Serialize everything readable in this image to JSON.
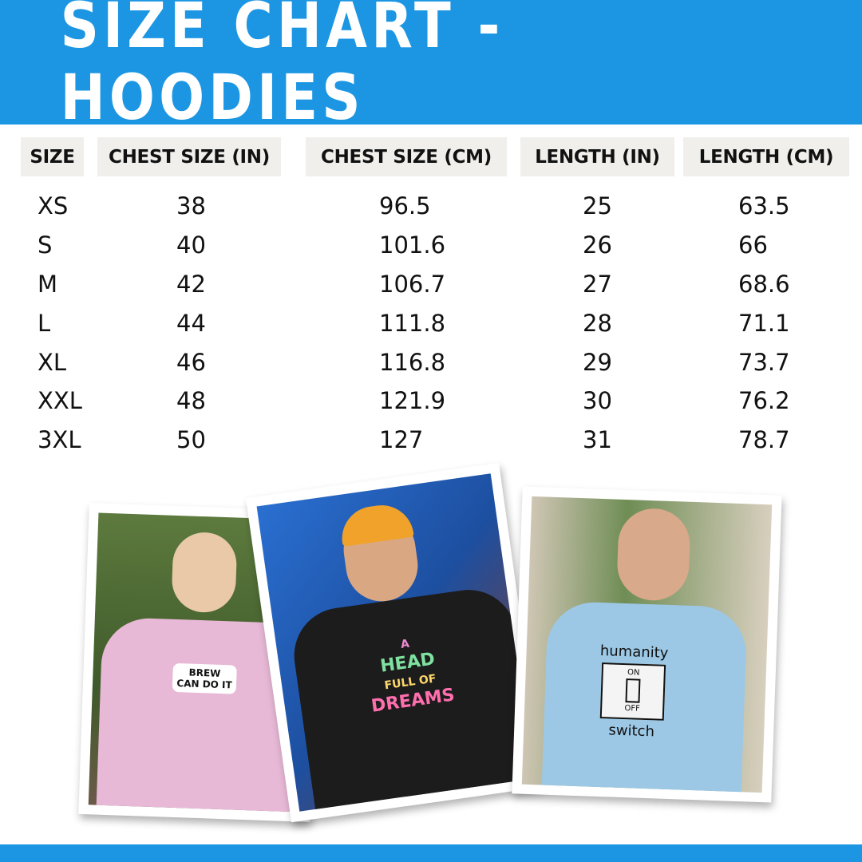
{
  "title": "SIZE CHART - HOODIES",
  "columns": [
    "SIZE",
    "CHEST SIZE (IN)",
    "CHEST SIZE (CM)",
    "LENGTH (IN)",
    "LENGTH (CM)"
  ],
  "rows": [
    [
      "XS",
      "38",
      "96.5",
      "25",
      "63.5"
    ],
    [
      "S",
      "40",
      "101.6",
      "26",
      "66"
    ],
    [
      "M",
      "42",
      "106.7",
      "27",
      "68.6"
    ],
    [
      "L",
      "44",
      "111.8",
      "28",
      "71.1"
    ],
    [
      "XL",
      "46",
      "116.8",
      "29",
      "73.7"
    ],
    [
      "XXL",
      "48",
      "121.9",
      "30",
      "76.2"
    ],
    [
      "3XL",
      "50",
      "127",
      "31",
      "78.7"
    ]
  ],
  "photos": [
    {
      "print_lines": [
        "BREW",
        "CAN DO IT"
      ],
      "hoodie_color": "#e7b9d6"
    },
    {
      "print_lines": [
        "A",
        "HEAD",
        "FULL OF",
        "DREAMS"
      ],
      "hoodie_color": "#1c1c1c"
    },
    {
      "print_lines": [
        "humanity",
        "ON",
        "OFF",
        "switch"
      ],
      "hoodie_color": "#9cc8e6"
    }
  ],
  "colors": {
    "brand_blue": "#1c96e3",
    "header_cell": "#f0efeb"
  }
}
